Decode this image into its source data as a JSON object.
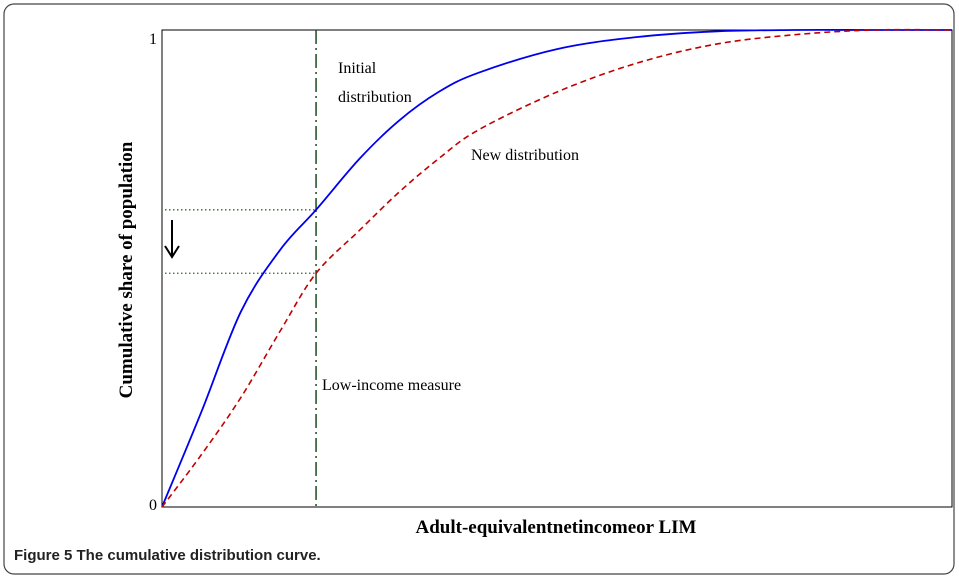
{
  "chart_data": {
    "type": "line",
    "caption": "Figure 5 The cumulative distribution curve.",
    "xlabel": "Adult-equivalentnetincomeor LIM",
    "ylabel": "Cumulative share of population",
    "annotations": {
      "initial": [
        "Initial",
        "distribution"
      ],
      "new": "New distribution",
      "lim": "Low-income measure"
    },
    "x": [
      0,
      0.05,
      0.1,
      0.15,
      0.195,
      0.25,
      0.3,
      0.35,
      0.4,
      0.5,
      0.6,
      0.7,
      0.8,
      0.9,
      1
    ],
    "series": [
      {
        "color": "#0000ee",
        "dash": "solid",
        "values": [
          0,
          0.2,
          0.41,
          0.54,
          0.623,
          0.73,
          0.81,
          0.87,
          0.91,
          0.96,
          0.985,
          0.997,
          1,
          1,
          1
        ]
      },
      {
        "color": "#c00000",
        "dash": "dashed",
        "values": [
          0,
          0.11,
          0.23,
          0.37,
          0.49,
          0.58,
          0.66,
          0.73,
          0.79,
          0.87,
          0.93,
          0.97,
          0.99,
          1,
          1
        ]
      }
    ],
    "lim_index": 4,
    "xlim": [
      0,
      1
    ],
    "ylim": [
      0,
      1
    ],
    "yticks": [
      0,
      1
    ]
  }
}
